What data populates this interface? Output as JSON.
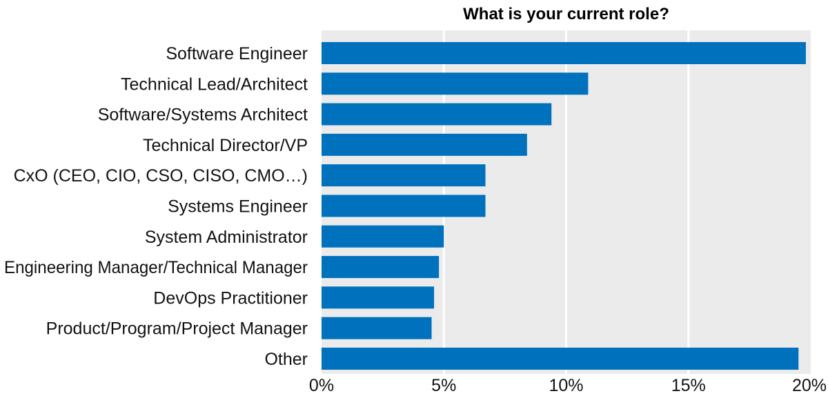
{
  "chart_data": {
    "type": "bar",
    "orientation": "horizontal",
    "title": "What is your current role?",
    "xlabel": "",
    "ylabel": "",
    "categories": [
      "Software Engineer",
      "Technical Lead/Architect",
      "Software/Systems Architect",
      "Technical Director/VP",
      "CxO (CEO, CIO, CSO, CISO, CMO…)",
      "Systems Engineer",
      "System Administrator",
      "Engineering Manager/Technical Manager",
      "DevOps Practitioner",
      "Product/Program/Project Manager",
      "Other"
    ],
    "values": [
      19.8,
      10.9,
      9.4,
      8.4,
      6.7,
      6.7,
      5.0,
      4.8,
      4.6,
      4.5,
      19.5
    ],
    "xlim": [
      0,
      20
    ],
    "xticks": [
      {
        "value": 0,
        "label": "0%"
      },
      {
        "value": 5,
        "label": "5%"
      },
      {
        "value": 10,
        "label": "10%"
      },
      {
        "value": 15,
        "label": "15%"
      },
      {
        "value": 20,
        "label": "20%"
      }
    ],
    "grid": true,
    "legend": "none",
    "colors": {
      "bar": "#0071bc",
      "plot_background": "#ebebeb",
      "gridline": "#ffffff"
    }
  }
}
